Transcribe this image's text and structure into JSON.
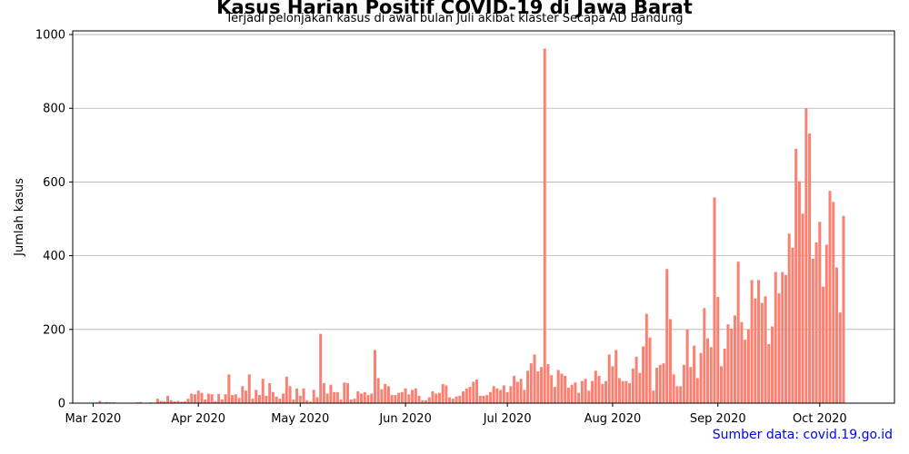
{
  "chart_data": {
    "type": "bar",
    "title": "Kasus Harian Positif COVID-19 di Jawa Barat",
    "subtitle": "Terjadi pelonjakan kasus di awal bulan Juli akibat klaster Secapa AD Bandung",
    "xlabel": "",
    "ylabel": "Jumlah kasus",
    "ylim": [
      0,
      1010
    ],
    "yticks": [
      0,
      200,
      400,
      600,
      800,
      1000
    ],
    "grid": "y",
    "bar_color": "#fa8072",
    "x_start": "2020-02-24",
    "x_end": "2020-10-23",
    "xticks": [
      {
        "date": "2020-03-01",
        "label": "Mar 2020"
      },
      {
        "date": "2020-04-01",
        "label": "Apr 2020"
      },
      {
        "date": "2020-05-01",
        "label": "May 2020"
      },
      {
        "date": "2020-06-01",
        "label": "Jun 2020"
      },
      {
        "date": "2020-07-01",
        "label": "Jul 2020"
      },
      {
        "date": "2020-08-01",
        "label": "Aug 2020"
      },
      {
        "date": "2020-09-01",
        "label": "Sep 2020"
      },
      {
        "date": "2020-10-01",
        "label": "Oct 2020"
      }
    ],
    "series": [
      {
        "start_date": "2020-03-02",
        "values": [
          2,
          6,
          2,
          3,
          2,
          2,
          0,
          0,
          0,
          0,
          0,
          0,
          2,
          3,
          0,
          0,
          2,
          0,
          12,
          6,
          5,
          20,
          8,
          5,
          6,
          4,
          5,
          12,
          26,
          24,
          34,
          28,
          10,
          26,
          24,
          5,
          25,
          10,
          24,
          78,
          22,
          24,
          14,
          46,
          34,
          78,
          12,
          36,
          22,
          66,
          20,
          54,
          30,
          18,
          12,
          26,
          72,
          46,
          10,
          40,
          20,
          40,
          8,
          4,
          36,
          16,
          188,
          54,
          26,
          50,
          30,
          30,
          10,
          56,
          54,
          10,
          12,
          32,
          26,
          30,
          22,
          26,
          144,
          68,
          38,
          52,
          46,
          22,
          22,
          28,
          30,
          40,
          24,
          36,
          40,
          20,
          8,
          8,
          16,
          32,
          26,
          28,
          52,
          48,
          16,
          12,
          18,
          20,
          32,
          40,
          44,
          58,
          64,
          20,
          20,
          22,
          30,
          46,
          40,
          36,
          48,
          30,
          46,
          74,
          58,
          66,
          36,
          88,
          108,
          132,
          86,
          98,
          962,
          106,
          76,
          44,
          90,
          80,
          74,
          42,
          50,
          56,
          28,
          60,
          66,
          34,
          60,
          88,
          74,
          52,
          60,
          132,
          100,
          144,
          68,
          60,
          60,
          54,
          94,
          126,
          82,
          154,
          242,
          178,
          34,
          96,
          104,
          108,
          364,
          228,
          78,
          46,
          46,
          104,
          200,
          98,
          156,
          68,
          136,
          258,
          176,
          152,
          558,
          288,
          100,
          148,
          214,
          202,
          238,
          384,
          220,
          172,
          200,
          334,
          284,
          334,
          272,
          290,
          160,
          208,
          356,
          298,
          356,
          348,
          460,
          422,
          690,
          602,
          514,
          800,
          732,
          392,
          436,
          492,
          316,
          430,
          576,
          546,
          368,
          246,
          508
        ]
      }
    ]
  },
  "source_note": "Sumber data: covid.19.go.id",
  "source_color": "#0000ff"
}
